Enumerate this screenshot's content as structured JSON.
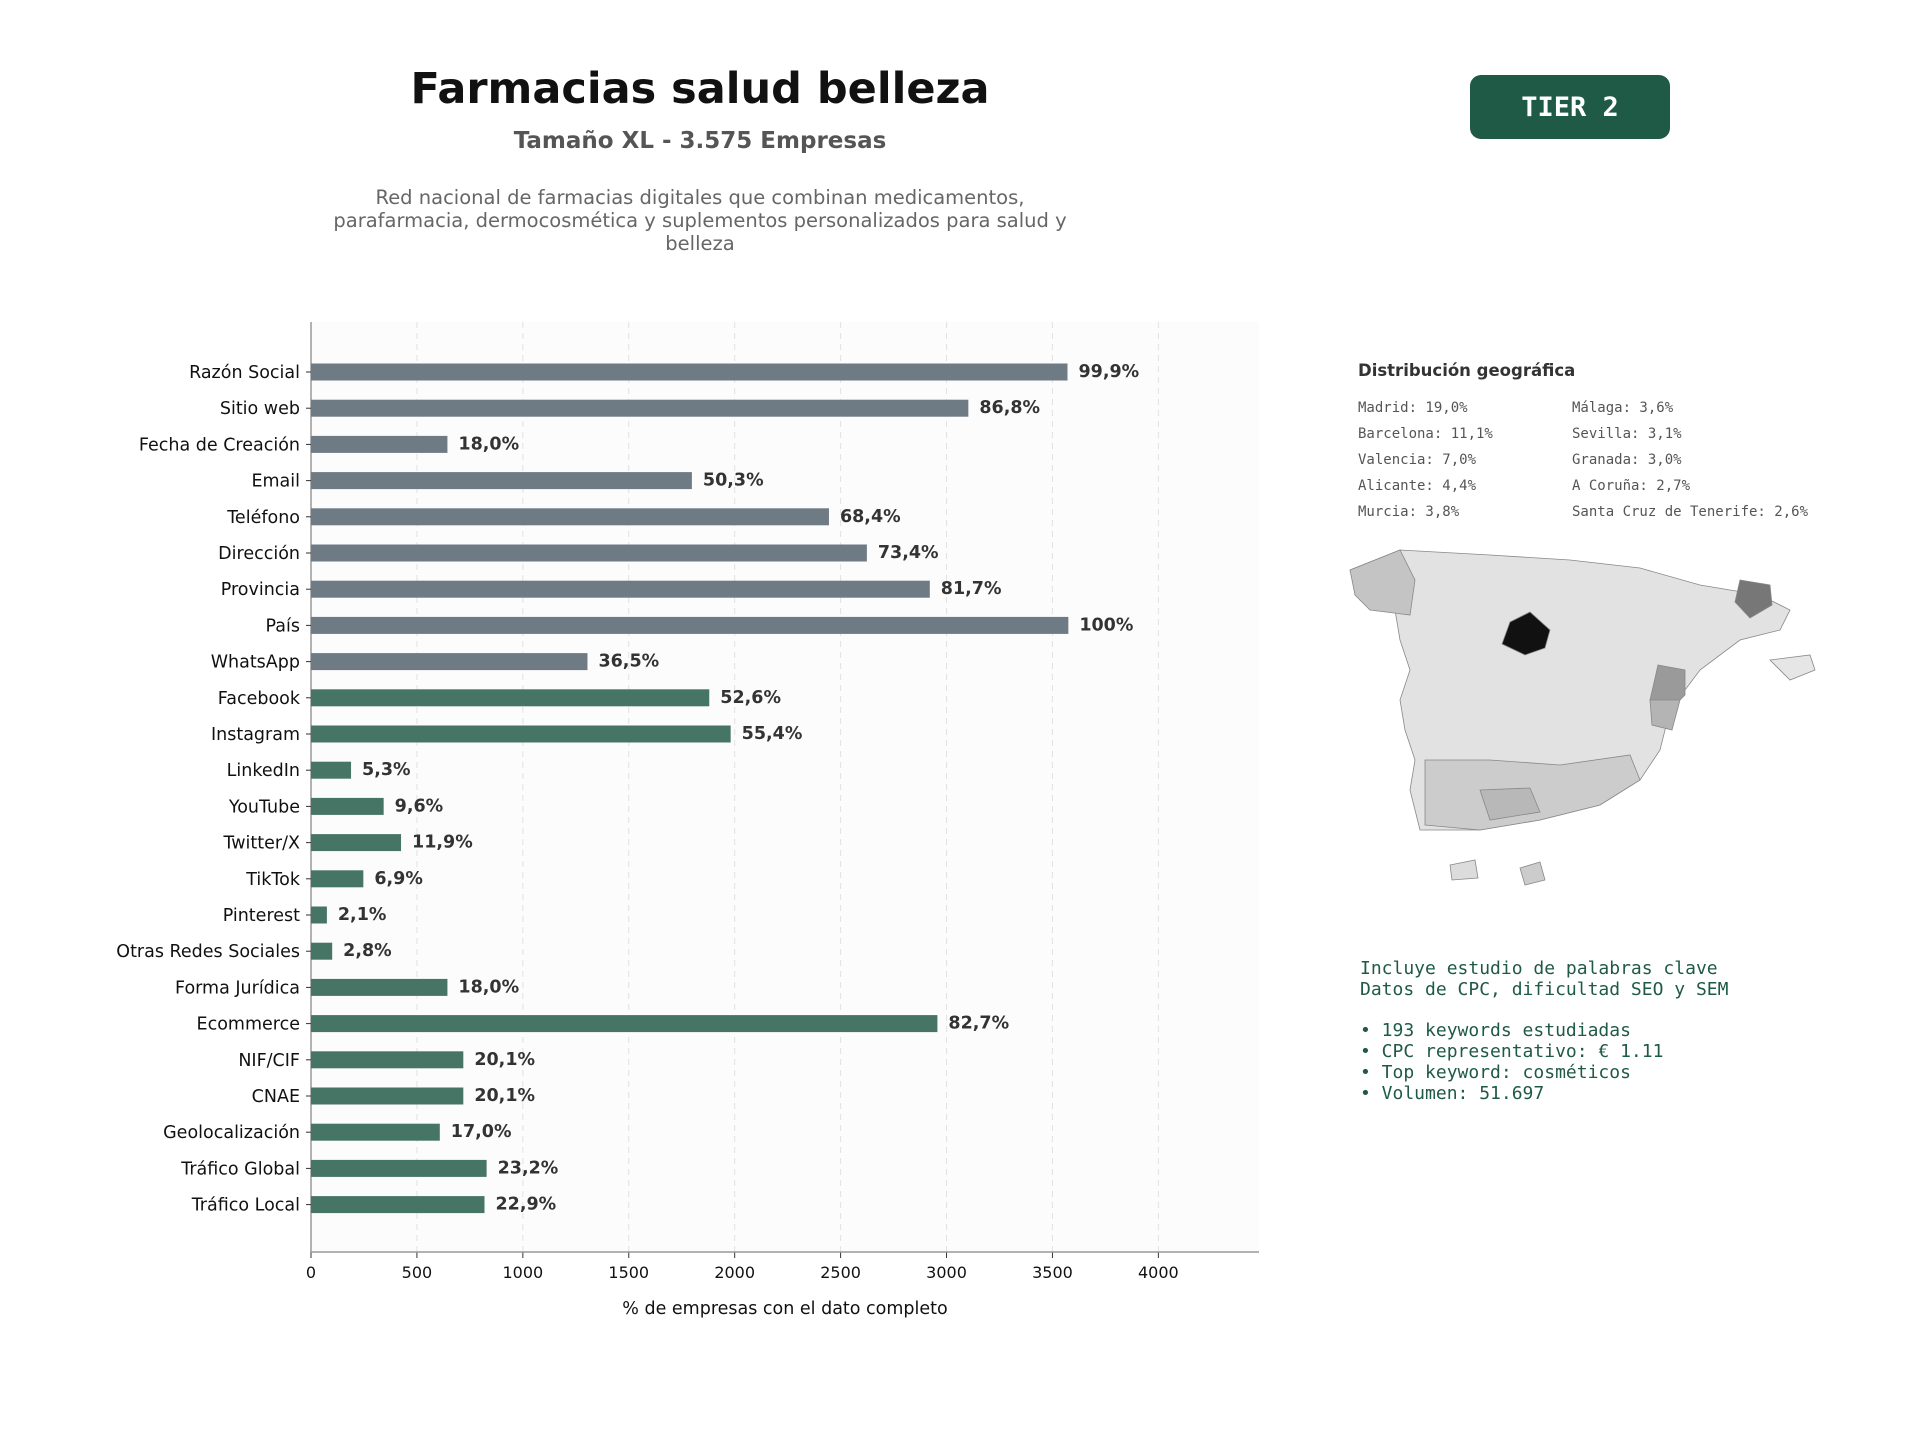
{
  "header": {
    "title": "Farmacias salud belleza",
    "subtitle": "Tamaño XL - 3.575 Empresas",
    "description_lines": [
      "Red nacional de farmacias digitales que combinan medicamentos,",
      "parafarmacia, dermocosmética y suplementos personalizados para salud y",
      "belleza"
    ],
    "tier_badge": "TIER 2"
  },
  "colors": {
    "gray_bar": "#6e7a84",
    "green_bar": "#477565",
    "brand": "#1e5a45"
  },
  "chart_data": {
    "type": "bar",
    "orientation": "horizontal",
    "xlabel": "% de empresas con el dato completo",
    "xlim": [
      0,
      4475
    ],
    "xticks": [
      0,
      500,
      1000,
      1500,
      2000,
      2500,
      3000,
      3500,
      4000
    ],
    "grid": "vertical dashed",
    "categories": [
      "Razón Social",
      "Sitio web",
      "Fecha de Creación",
      "Email",
      "Teléfono",
      "Dirección",
      "Provincia",
      "País",
      "WhatsApp",
      "Facebook",
      "Instagram",
      "LinkedIn",
      "YouTube",
      "Twitter/X",
      "TikTok",
      "Pinterest",
      "Otras Redes Sociales",
      "Forma Jurídica",
      "Ecommerce",
      "NIF/CIF",
      "CNAE",
      "Geolocalización",
      "Tráfico Global",
      "Tráfico Local"
    ],
    "values": [
      3571,
      3103,
      644,
      1798,
      2445,
      2624,
      2921,
      3575,
      1305,
      1880,
      1981,
      189,
      343,
      425,
      247,
      75,
      100,
      644,
      2957,
      719,
      719,
      608,
      829,
      819
    ],
    "labels": [
      "99,9%",
      "86,8%",
      "18,0%",
      "50,3%",
      "68,4%",
      "73,4%",
      "81,7%",
      "100%",
      "36,5%",
      "52,6%",
      "55,4%",
      "5,3%",
      "9,6%",
      "11,9%",
      "6,9%",
      "2,1%",
      "2,8%",
      "18,0%",
      "82,7%",
      "20,1%",
      "20,1%",
      "17,0%",
      "23,2%",
      "22,9%"
    ],
    "groups": [
      "gray",
      "gray",
      "gray",
      "gray",
      "gray",
      "gray",
      "gray",
      "gray",
      "gray",
      "green",
      "green",
      "green",
      "green",
      "green",
      "green",
      "green",
      "green",
      "green",
      "green",
      "green",
      "green",
      "green",
      "green",
      "green"
    ]
  },
  "geo": {
    "title": "Distribución geográfica",
    "left": [
      "Madrid: 19,0%",
      "Barcelona: 11,1%",
      "Valencia: 7,0%",
      "Alicante: 4,4%",
      "Murcia: 3,8%"
    ],
    "right": [
      "Málaga: 3,6%",
      "Sevilla: 3,1%",
      "Granada: 3,0%",
      "A Coruña: 2,7%",
      "Santa Cruz de Tenerife: 2,6%"
    ]
  },
  "keywords": {
    "line1": "Incluye estudio de palabras clave",
    "line2": "Datos de CPC, dificultad SEO y SEM",
    "bullets": [
      "• 193 keywords estudiadas",
      "• CPC representativo: € 1.11",
      "• Top keyword: cosméticos",
      "• Volumen: 51.697"
    ]
  }
}
